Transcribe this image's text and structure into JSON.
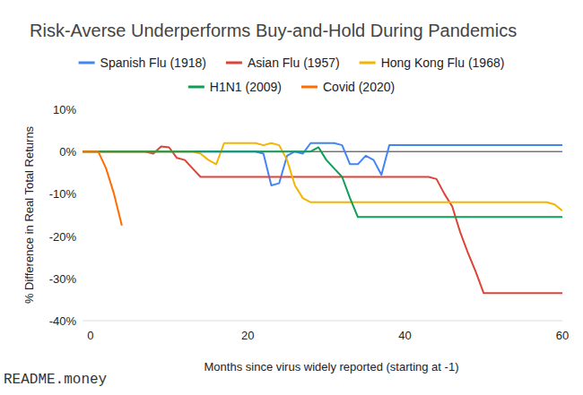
{
  "chart_data": {
    "type": "line",
    "title": "Risk-Averse Underperforms Buy-and-Hold During Pandemics",
    "x_label": "Months since virus widely reported (starting at -1)",
    "y_label": "% Difference in Real Total Returns",
    "annotations": [
      "README.money"
    ],
    "x": [
      -1,
      0,
      1,
      2,
      3,
      4,
      5,
      6,
      7,
      8,
      9,
      10,
      11,
      12,
      13,
      14,
      15,
      16,
      17,
      18,
      19,
      20,
      21,
      22,
      23,
      24,
      25,
      26,
      27,
      28,
      29,
      30,
      31,
      32,
      33,
      34,
      35,
      36,
      37,
      38,
      39,
      40,
      41,
      42,
      43,
      44,
      45,
      46,
      47,
      48,
      49,
      50,
      51,
      52,
      53,
      54,
      55,
      56,
      57,
      58,
      59,
      60
    ],
    "series": [
      {
        "name": "Spanish Flu (1918)",
        "color": "#4285f4",
        "values": [
          0,
          0,
          0,
          0,
          0,
          0,
          0,
          0,
          0,
          0,
          0,
          0,
          0,
          0,
          0,
          0,
          0,
          0,
          0,
          0,
          0,
          0,
          0,
          -0.5,
          -8,
          -7.5,
          -1,
          0,
          -0.5,
          2,
          2,
          2,
          2,
          1.5,
          -3,
          -3,
          -1,
          -2,
          -5.5,
          1.5,
          1.5,
          1.5,
          1.5,
          1.5,
          1.5,
          1.5,
          1.5,
          1.5,
          1.5,
          1.5,
          1.5,
          1.5,
          1.5,
          1.5,
          1.5,
          1.5,
          1.5,
          1.5,
          1.5,
          1.5,
          1.5,
          1.5
        ]
      },
      {
        "name": "Asian Flu (1957)",
        "color": "#db4437",
        "values": [
          0,
          0,
          0,
          0,
          0,
          0,
          0,
          0,
          0,
          -0.5,
          1.2,
          1,
          -1.5,
          -2,
          -4,
          -6,
          -6,
          -6,
          -6,
          -6,
          -6,
          -6,
          -6,
          -6,
          -6,
          -6,
          -6,
          -6,
          -6,
          -6,
          -6,
          -6,
          -6,
          -6,
          -6,
          -6,
          -6,
          -6,
          -6,
          -6,
          -6,
          -6,
          -6,
          -6,
          -6,
          -6.5,
          -10,
          -13,
          -19,
          -24,
          -28.5,
          -33.5,
          -33.5,
          -33.5,
          -33.5,
          -33.5,
          -33.5,
          -33.5,
          -33.5,
          -33.5,
          -33.5,
          -33.5
        ]
      },
      {
        "name": "Hong Kong Flu (1968)",
        "color": "#f4b400",
        "values": [
          0,
          0,
          0,
          0,
          0,
          0,
          0,
          0,
          0,
          0,
          0,
          0,
          0,
          0,
          0,
          -0.5,
          -2,
          -3,
          2,
          2,
          2,
          2,
          2,
          1.5,
          2,
          1.5,
          -2,
          -8,
          -11,
          -12,
          -12,
          -12,
          -12,
          -12,
          -12,
          -12,
          -12,
          -12,
          -12,
          -12,
          -12,
          -12,
          -12,
          -12,
          -12,
          -12,
          -12,
          -12,
          -12,
          -12,
          -12,
          -12,
          -12,
          -12,
          -12,
          -12,
          -12,
          -12,
          -12,
          -12,
          -12.5,
          -14
        ]
      },
      {
        "name": "H1N1 (2009)",
        "color": "#0f9d58",
        "values": [
          0,
          0,
          0,
          0,
          0,
          0,
          0,
          0,
          0,
          0,
          0,
          0,
          0,
          0,
          0,
          0,
          0,
          0,
          0,
          0,
          0,
          0,
          0,
          0,
          0,
          0,
          0,
          0,
          0,
          0,
          1,
          -2,
          -4,
          -6,
          -11,
          -15.5,
          -15.5,
          -15.5,
          -15.5,
          -15.5,
          -15.5,
          -15.5,
          -15.5,
          -15.5,
          -15.5,
          -15.5,
          -15.5,
          -15.5,
          -15.5,
          -15.5,
          -15.5,
          -15.5,
          -15.5,
          -15.5,
          -15.5,
          -15.5,
          -15.5,
          -15.5,
          -15.5,
          -15.5,
          -15.5,
          -15.5
        ]
      },
      {
        "name": "Covid (2020)",
        "color": "#ff6d01",
        "values": [
          0,
          0,
          0,
          -4,
          -10,
          -17.5,
          null,
          null,
          null,
          null,
          null,
          null,
          null,
          null,
          null,
          null,
          null,
          null,
          null,
          null,
          null,
          null,
          null,
          null,
          null,
          null,
          null,
          null,
          null,
          null,
          null,
          null,
          null,
          null,
          null,
          null,
          null,
          null,
          null,
          null,
          null,
          null,
          null,
          null,
          null,
          null,
          null,
          null,
          null,
          null,
          null,
          null,
          null,
          null,
          null,
          null,
          null,
          null,
          null,
          null,
          null,
          null
        ]
      }
    ],
    "xlim": [
      -1,
      60
    ],
    "xticks": [
      0,
      20,
      40,
      60
    ],
    "ylim": [
      -40,
      10
    ],
    "yticks": [
      {
        "value": -40,
        "label": "-40%"
      },
      {
        "value": -30,
        "label": "-30%"
      },
      {
        "value": -20,
        "label": "-20%"
      },
      {
        "value": -10,
        "label": "-10%"
      },
      {
        "value": 0,
        "label": "0%"
      },
      {
        "value": 10,
        "label": "10%"
      }
    ],
    "grid": false,
    "legend": "top"
  }
}
